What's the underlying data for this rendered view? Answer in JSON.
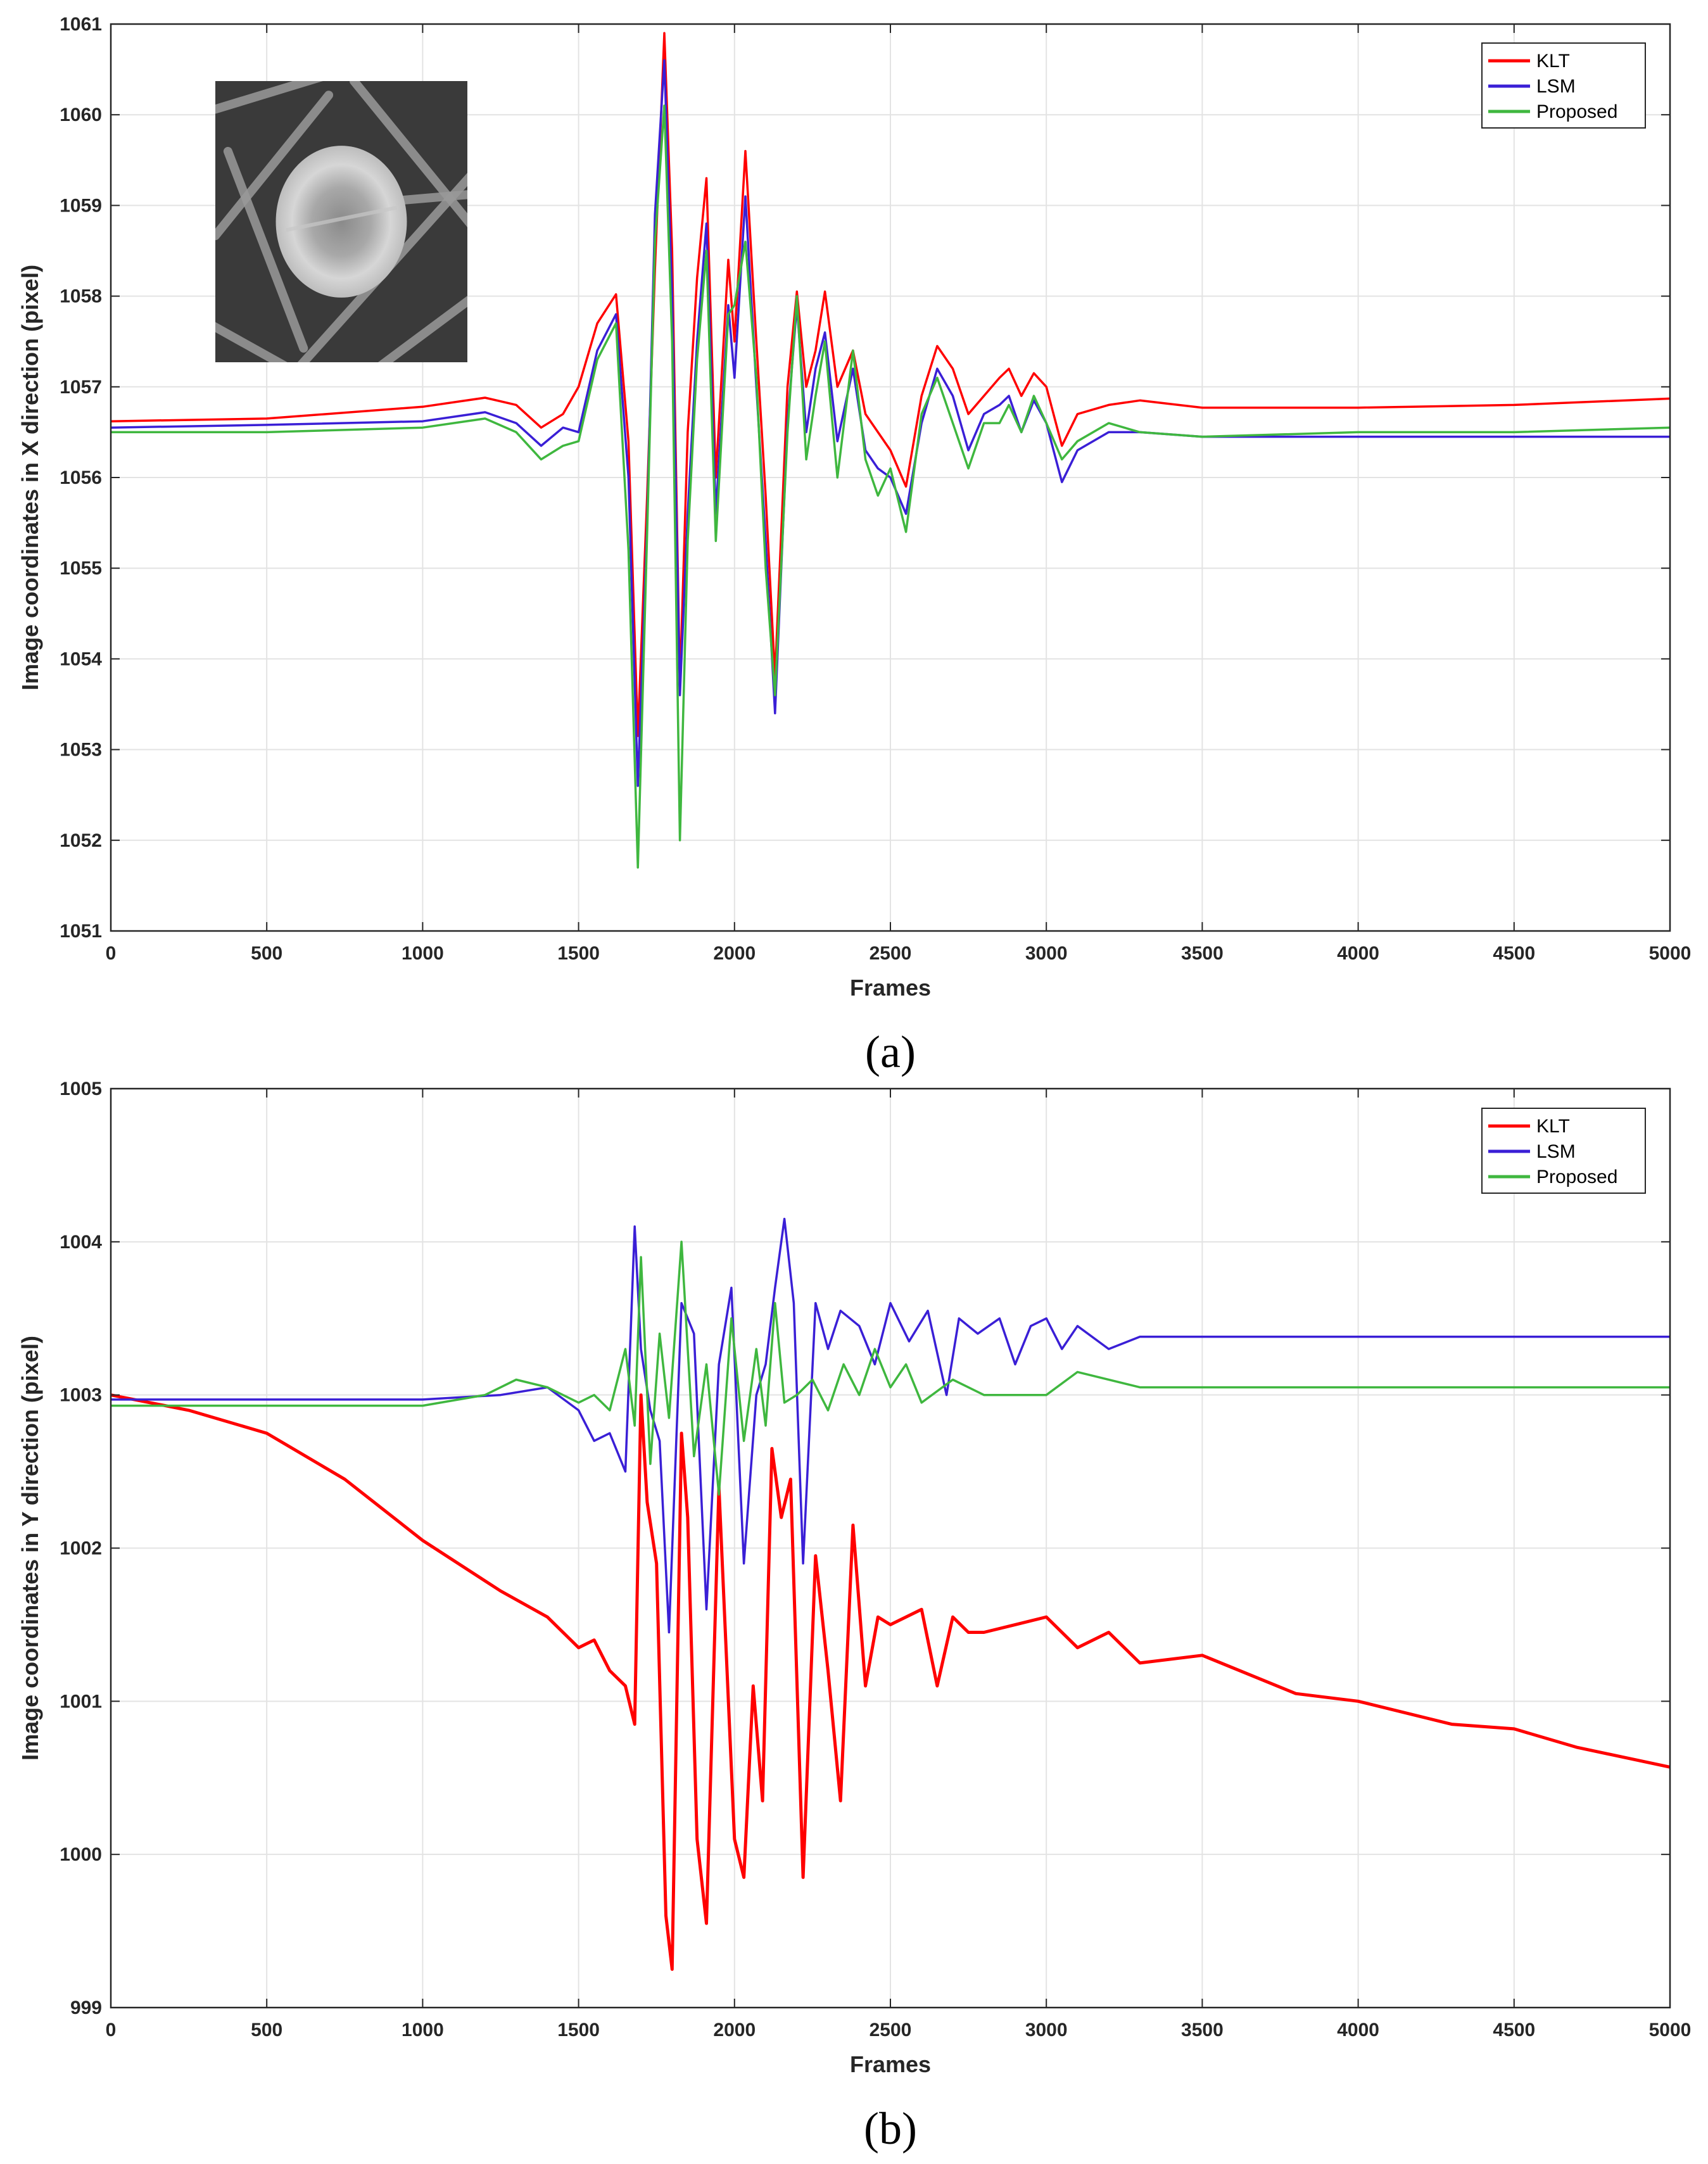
{
  "chart_data": [
    {
      "type": "line",
      "caption": "(a)",
      "title": "",
      "xlabel": "Frames",
      "ylabel": "Image coordinates in X direction (pixel)",
      "xlim": [
        0,
        5000
      ],
      "ylim": [
        1051,
        1061
      ],
      "xticks": [
        0,
        500,
        1000,
        1500,
        2000,
        2500,
        3000,
        3500,
        4000,
        4500,
        5000
      ],
      "yticks": [
        1051,
        1052,
        1053,
        1054,
        1055,
        1056,
        1057,
        1058,
        1059,
        1060,
        1061
      ],
      "grid": true,
      "legend_position": "top-right",
      "inset": "grayscale image patch of a circular target (top-left)",
      "series": [
        {
          "name": "KLT",
          "color": "#ff0000",
          "x": [
            0,
            500,
            1000,
            1200,
            1300,
            1380,
            1450,
            1500,
            1560,
            1620,
            1660,
            1690,
            1720,
            1745,
            1775,
            1800,
            1825,
            1850,
            1880,
            1910,
            1940,
            1980,
            2000,
            2035,
            2070,
            2100,
            2130,
            2170,
            2200,
            2230,
            2260,
            2290,
            2330,
            2380,
            2420,
            2460,
            2500,
            2550,
            2600,
            2650,
            2700,
            2750,
            2800,
            2850,
            2880,
            2920,
            2960,
            3000,
            3050,
            3100,
            3200,
            3300,
            3500,
            4000,
            4500,
            5000
          ],
          "values": [
            1056.62,
            1056.65,
            1056.78,
            1056.88,
            1056.8,
            1056.55,
            1056.7,
            1057.0,
            1057.7,
            1058.02,
            1056.4,
            1053.15,
            1055.8,
            1058.3,
            1060.9,
            1058.5,
            1053.7,
            1056.5,
            1058.2,
            1059.3,
            1056.0,
            1058.4,
            1057.5,
            1059.6,
            1057.5,
            1055.8,
            1053.8,
            1057.0,
            1058.05,
            1057.0,
            1057.4,
            1058.05,
            1057.0,
            1057.4,
            1056.7,
            1056.5,
            1056.3,
            1055.9,
            1056.9,
            1057.45,
            1057.2,
            1056.7,
            1056.9,
            1057.1,
            1057.2,
            1056.9,
            1057.15,
            1057.0,
            1056.35,
            1056.7,
            1056.8,
            1056.85,
            1056.77,
            1056.77,
            1056.8,
            1056.87
          ]
        },
        {
          "name": "LSM",
          "color": "#3a1fd6",
          "x": [
            0,
            500,
            1000,
            1200,
            1300,
            1380,
            1450,
            1500,
            1560,
            1620,
            1660,
            1690,
            1720,
            1745,
            1775,
            1800,
            1825,
            1850,
            1880,
            1910,
            1940,
            1980,
            2000,
            2035,
            2070,
            2100,
            2130,
            2170,
            2200,
            2230,
            2260,
            2290,
            2330,
            2380,
            2420,
            2460,
            2500,
            2550,
            2600,
            2650,
            2700,
            2750,
            2800,
            2850,
            2880,
            2920,
            2960,
            3000,
            3050,
            3100,
            3200,
            3300,
            3500,
            4000,
            4500,
            5000
          ],
          "values": [
            1056.55,
            1056.58,
            1056.62,
            1056.72,
            1056.6,
            1056.35,
            1056.55,
            1056.5,
            1057.4,
            1057.8,
            1056.0,
            1052.6,
            1055.5,
            1058.9,
            1060.6,
            1058.0,
            1053.6,
            1055.6,
            1057.5,
            1058.8,
            1055.6,
            1057.9,
            1057.1,
            1059.1,
            1057.0,
            1055.3,
            1053.4,
            1056.6,
            1057.9,
            1056.5,
            1057.2,
            1057.6,
            1056.4,
            1057.2,
            1056.3,
            1056.1,
            1056.0,
            1055.6,
            1056.6,
            1057.2,
            1056.9,
            1056.3,
            1056.7,
            1056.8,
            1056.9,
            1056.5,
            1056.85,
            1056.6,
            1055.95,
            1056.3,
            1056.5,
            1056.5,
            1056.45,
            1056.45,
            1056.45,
            1056.45
          ]
        },
        {
          "name": "Proposed",
          "color": "#3fb73f",
          "x": [
            0,
            500,
            1000,
            1200,
            1300,
            1380,
            1450,
            1500,
            1560,
            1620,
            1660,
            1690,
            1720,
            1745,
            1775,
            1800,
            1825,
            1850,
            1880,
            1910,
            1940,
            1980,
            2000,
            2035,
            2070,
            2100,
            2130,
            2170,
            2200,
            2230,
            2260,
            2290,
            2330,
            2380,
            2420,
            2460,
            2500,
            2550,
            2600,
            2650,
            2700,
            2750,
            2800,
            2850,
            2880,
            2920,
            2960,
            3000,
            3050,
            3100,
            3200,
            3300,
            3500,
            4000,
            4500,
            5000
          ],
          "values": [
            1056.5,
            1056.5,
            1056.55,
            1056.65,
            1056.5,
            1056.2,
            1056.35,
            1056.4,
            1057.3,
            1057.7,
            1055.2,
            1051.7,
            1055.4,
            1058.6,
            1060.1,
            1057.5,
            1052.0,
            1055.3,
            1057.3,
            1058.5,
            1055.3,
            1057.8,
            1057.9,
            1058.6,
            1057.1,
            1055.0,
            1053.6,
            1056.5,
            1058.0,
            1056.2,
            1056.9,
            1057.5,
            1056.0,
            1057.4,
            1056.2,
            1055.8,
            1056.1,
            1055.4,
            1056.7,
            1057.1,
            1056.6,
            1056.1,
            1056.6,
            1056.6,
            1056.8,
            1056.5,
            1056.9,
            1056.6,
            1056.2,
            1056.4,
            1056.6,
            1056.5,
            1056.45,
            1056.5,
            1056.5,
            1056.55
          ]
        }
      ]
    },
    {
      "type": "line",
      "caption": "(b)",
      "title": "",
      "xlabel": "Frames",
      "ylabel": "Image coordinates in Y direction (pixel)",
      "xlim": [
        0,
        5000
      ],
      "ylim": [
        999,
        1005
      ],
      "xticks": [
        0,
        500,
        1000,
        1500,
        2000,
        2500,
        3000,
        3500,
        4000,
        4500,
        5000
      ],
      "yticks": [
        999,
        1000,
        1001,
        1002,
        1003,
        1004,
        1005
      ],
      "grid": true,
      "legend_position": "top-right",
      "series": [
        {
          "name": "KLT",
          "color": "#ff0000",
          "x": [
            0,
            250,
            500,
            750,
            1000,
            1250,
            1400,
            1500,
            1550,
            1600,
            1650,
            1680,
            1700,
            1720,
            1750,
            1780,
            1800,
            1830,
            1850,
            1880,
            1910,
            1950,
            2000,
            2030,
            2060,
            2090,
            2120,
            2150,
            2180,
            2220,
            2260,
            2300,
            2340,
            2380,
            2420,
            2460,
            2500,
            2600,
            2650,
            2700,
            2750,
            2800,
            2900,
            3000,
            3100,
            3200,
            3300,
            3500,
            3800,
            4000,
            4300,
            4500,
            4700,
            5000
          ],
          "values": [
            1003.0,
            1002.9,
            1002.75,
            1002.45,
            1002.05,
            1001.72,
            1001.55,
            1001.35,
            1001.4,
            1001.2,
            1001.1,
            1000.85,
            1003.0,
            1002.3,
            1001.9,
            999.6,
            999.25,
            1002.75,
            1002.2,
            1000.1,
            999.55,
            1002.4,
            1000.1,
            999.85,
            1001.1,
            1000.35,
            1002.65,
            1002.2,
            1002.45,
            999.85,
            1001.95,
            1001.2,
            1000.35,
            1002.15,
            1001.1,
            1001.55,
            1001.5,
            1001.6,
            1001.1,
            1001.55,
            1001.45,
            1001.45,
            1001.5,
            1001.55,
            1001.35,
            1001.45,
            1001.25,
            1001.3,
            1001.05,
            1001.0,
            1000.85,
            1000.82,
            1000.7,
            1000.57
          ]
        },
        {
          "name": "LSM",
          "color": "#3a1fd6",
          "x": [
            0,
            500,
            1000,
            1250,
            1400,
            1500,
            1550,
            1600,
            1650,
            1680,
            1700,
            1730,
            1760,
            1790,
            1830,
            1870,
            1910,
            1950,
            1990,
            2030,
            2070,
            2100,
            2130,
            2160,
            2190,
            2220,
            2260,
            2300,
            2340,
            2400,
            2450,
            2500,
            2560,
            2620,
            2680,
            2720,
            2780,
            2850,
            2900,
            2950,
            3000,
            3050,
            3100,
            3200,
            3300,
            3500,
            4000,
            4500,
            5000
          ],
          "values": [
            1002.97,
            1002.97,
            1002.97,
            1003.0,
            1003.05,
            1002.9,
            1002.7,
            1002.75,
            1002.5,
            1004.1,
            1003.3,
            1002.9,
            1002.7,
            1001.45,
            1003.6,
            1003.4,
            1001.6,
            1003.2,
            1003.7,
            1001.9,
            1003.0,
            1003.2,
            1003.7,
            1004.15,
            1003.6,
            1001.9,
            1003.6,
            1003.3,
            1003.55,
            1003.45,
            1003.2,
            1003.6,
            1003.35,
            1003.55,
            1003.0,
            1003.5,
            1003.4,
            1003.5,
            1003.2,
            1003.45,
            1003.5,
            1003.3,
            1003.45,
            1003.3,
            1003.38,
            1003.38,
            1003.38,
            1003.38,
            1003.38
          ]
        },
        {
          "name": "Proposed",
          "color": "#3fb73f",
          "x": [
            0,
            500,
            1000,
            1200,
            1300,
            1400,
            1500,
            1550,
            1600,
            1650,
            1680,
            1700,
            1730,
            1760,
            1790,
            1830,
            1870,
            1910,
            1950,
            1990,
            2030,
            2070,
            2100,
            2130,
            2160,
            2200,
            2250,
            2300,
            2350,
            2400,
            2450,
            2500,
            2550,
            2600,
            2700,
            2800,
            3000,
            3100,
            3300,
            3500,
            4000,
            4500,
            5000
          ],
          "values": [
            1002.93,
            1002.93,
            1002.93,
            1003.0,
            1003.1,
            1003.05,
            1002.95,
            1003.0,
            1002.9,
            1003.3,
            1002.8,
            1003.9,
            1002.55,
            1003.4,
            1002.85,
            1004.0,
            1002.6,
            1003.2,
            1002.35,
            1003.5,
            1002.7,
            1003.3,
            1002.8,
            1003.6,
            1002.95,
            1003.0,
            1003.1,
            1002.9,
            1003.2,
            1003.0,
            1003.3,
            1003.05,
            1003.2,
            1002.95,
            1003.1,
            1003.0,
            1003.0,
            1003.15,
            1003.05,
            1003.05,
            1003.05,
            1003.05,
            1003.05
          ]
        }
      ]
    }
  ]
}
